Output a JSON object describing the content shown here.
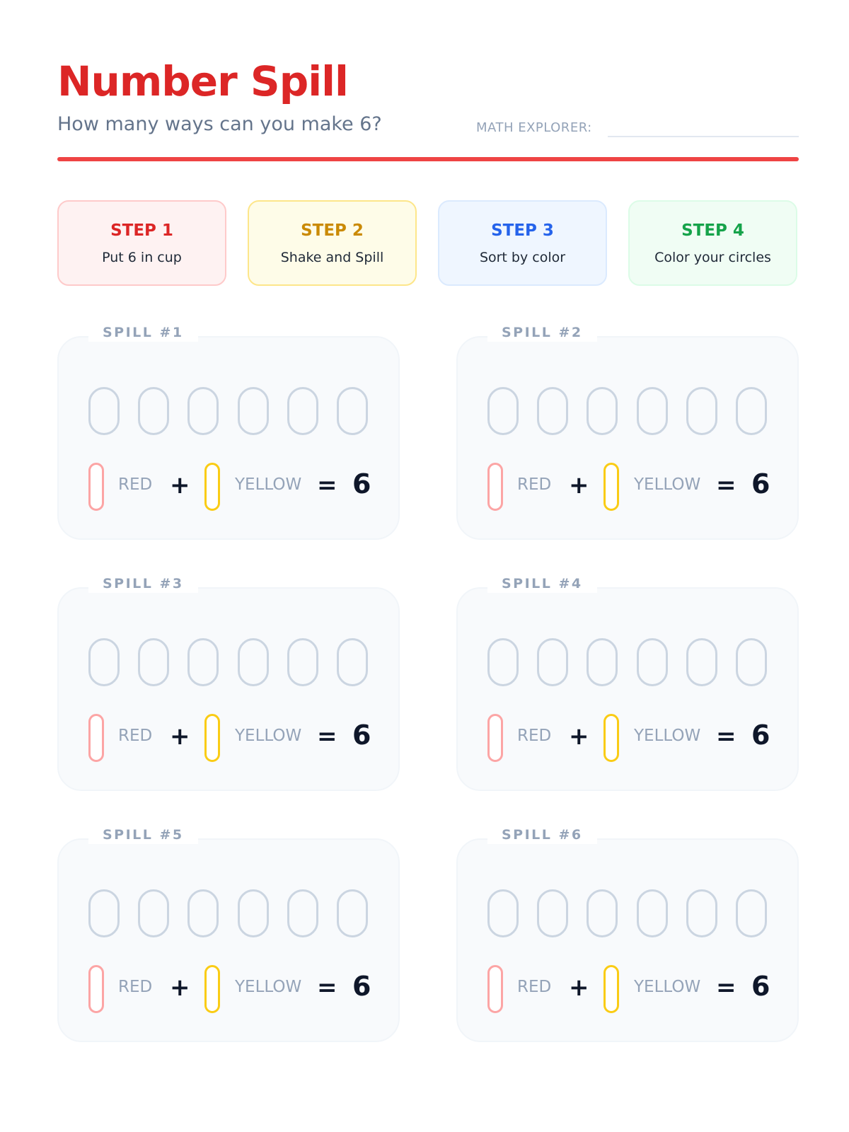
{
  "header": {
    "title": "Number Spill",
    "subtitle": "How many ways can you make 6?",
    "explorer_label": "MATH EXPLORER:"
  },
  "steps": [
    {
      "title": "STEP 1",
      "text": "Put 6 in cup"
    },
    {
      "title": "STEP 2",
      "text": "Shake and Spill"
    },
    {
      "title": "STEP 3",
      "text": "Sort by color"
    },
    {
      "title": "STEP 4",
      "text": "Color your circles"
    }
  ],
  "spills": [
    {
      "label": "SPILL #1",
      "red_label": "RED",
      "plus": "+",
      "yellow_label": "YELLOW",
      "equals": "=",
      "total": "6"
    },
    {
      "label": "SPILL #2",
      "red_label": "RED",
      "plus": "+",
      "yellow_label": "YELLOW",
      "equals": "=",
      "total": "6"
    },
    {
      "label": "SPILL #3",
      "red_label": "RED",
      "plus": "+",
      "yellow_label": "YELLOW",
      "equals": "=",
      "total": "6"
    },
    {
      "label": "SPILL #4",
      "red_label": "RED",
      "plus": "+",
      "yellow_label": "YELLOW",
      "equals": "=",
      "total": "6"
    },
    {
      "label": "SPILL #5",
      "red_label": "RED",
      "plus": "+",
      "yellow_label": "YELLOW",
      "equals": "=",
      "total": "6"
    },
    {
      "label": "SPILL #6",
      "red_label": "RED",
      "plus": "+",
      "yellow_label": "YELLOW",
      "equals": "=",
      "total": "6"
    }
  ],
  "colors": {
    "title": "#dc2626",
    "rule": "#ef4444",
    "red_pill": "#fca5a5",
    "yellow_pill": "#facc15",
    "circle_outline": "#cbd5e1"
  }
}
